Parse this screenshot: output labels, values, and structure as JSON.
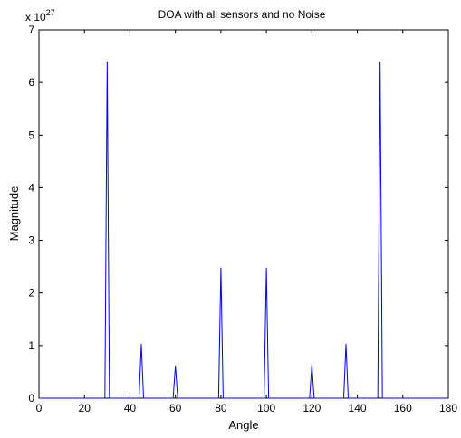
{
  "chart_data": {
    "type": "line",
    "title": "DOA with all sensors and no Noise",
    "xlabel": "Angle",
    "ylabel": "Magnitude",
    "y_exponent_base": "x 10",
    "y_exponent_power": "27",
    "xlim": [
      0,
      180
    ],
    "ylim": [
      0,
      7
    ],
    "xticks": [
      0,
      20,
      40,
      60,
      80,
      100,
      120,
      140,
      160,
      180
    ],
    "yticks": [
      0,
      1,
      2,
      3,
      4,
      5,
      6,
      7
    ],
    "grid": false,
    "line_color": "#0000ff",
    "series": [
      {
        "x": [
          0,
          29,
          30,
          31,
          44,
          45,
          46,
          59,
          60,
          61,
          79,
          80,
          81,
          99,
          100,
          101,
          119,
          120,
          121,
          134,
          135,
          136,
          149,
          150,
          151,
          180
        ],
        "y": [
          0,
          0,
          6.4,
          0,
          0,
          1.03,
          0,
          0,
          0.62,
          0,
          0,
          2.48,
          0,
          0,
          2.48,
          0,
          0,
          0.64,
          0,
          0,
          1.03,
          0,
          0,
          6.4,
          0,
          0
        ]
      }
    ]
  }
}
